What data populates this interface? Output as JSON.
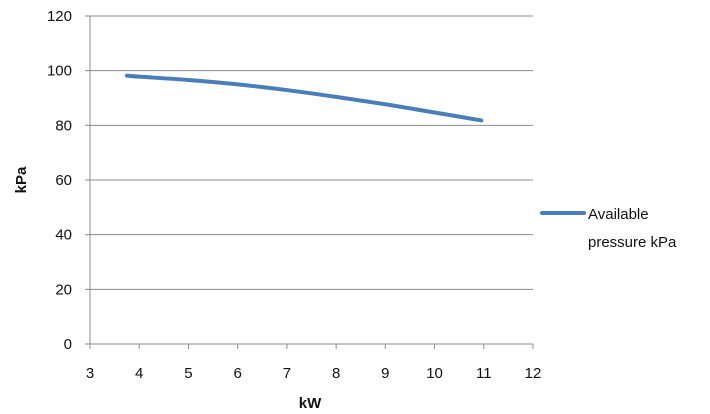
{
  "chart_data": {
    "type": "line",
    "title": "",
    "xlabel": "kW",
    "ylabel": "kPa",
    "xlim": [
      3,
      12
    ],
    "ylim": [
      0,
      120
    ],
    "x_ticks": [
      "3",
      "4",
      "5",
      "6",
      "7",
      "8",
      "9",
      "10",
      "11",
      "12"
    ],
    "y_ticks": [
      "0",
      "20",
      "40",
      "60",
      "80",
      "100",
      "120"
    ],
    "grid": "horizontal",
    "legend_position": "right",
    "series": [
      {
        "name": "Available pressure kPa",
        "legend_lines": [
          "Available",
          "pressure kPa"
        ],
        "color": "#4a7ebb",
        "points": [
          [
            3.75,
            98.2
          ],
          [
            4,
            97.8
          ],
          [
            5,
            96.6
          ],
          [
            6,
            95.0
          ],
          [
            7,
            92.9
          ],
          [
            8,
            90.4
          ],
          [
            9,
            87.7
          ],
          [
            10,
            84.7
          ],
          [
            10.95,
            81.8
          ]
        ]
      }
    ]
  }
}
